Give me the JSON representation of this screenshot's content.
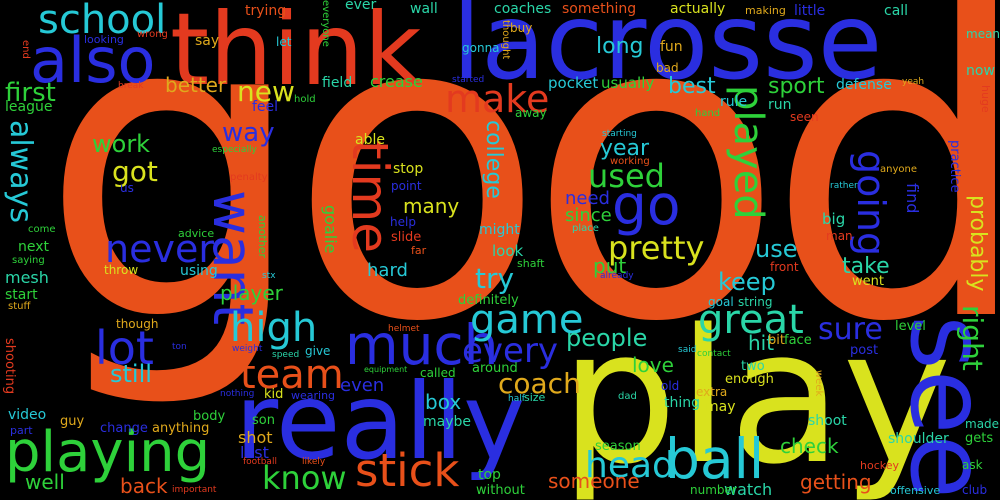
{
  "words": {
    "good": "good",
    "play": "play",
    "lacrosse": "lacrosse",
    "think": "think",
    "really": "really",
    "see": "see",
    "also": "also",
    "school": "school",
    "much": "much",
    "go": "go",
    "want": "want",
    "time": "time",
    "ball": "ball",
    "playing": "playing",
    "stick": "stick",
    "game": "game",
    "great": "great",
    "lot": "lot",
    "high": "high",
    "team": "team",
    "never": "never",
    "played": "played",
    "going": "going",
    "make": "make",
    "head": "head",
    "every": "every",
    "pretty": "pretty",
    "used": "used",
    "know": "know",
    "sure": "sure",
    "coach": "coach",
    "first": "first",
    "always": "always",
    "got": "got",
    "work": "work",
    "new": "new",
    "way": "way",
    "better": "better",
    "best": "best",
    "sport": "sport",
    "long": "long",
    "right": "right",
    "probably": "probably",
    "keep": "keep",
    "use": "use",
    "take": "take",
    "try": "try",
    "people": "people",
    "year": "year",
    "need": "need",
    "since": "since",
    "many": "many",
    "college": "college",
    "still": "still",
    "player": "player",
    "well": "well",
    "back": "back",
    "someone": "someone",
    "check": "check",
    "getting": "getting",
    "hit": "hit",
    "love": "love",
    "put": "put",
    "box": "box",
    "hard": "hard",
    "goalie": "goalie",
    "even": "even",
    "last": "last",
    "shot": "shot",
    "watch": "watch",
    "club": "club",
    "mean": "mean",
    "now": "now",
    "crease": "crease",
    "pocket": "pocket",
    "usually": "usually",
    "defense": "defense",
    "field": "field",
    "league": "league",
    "rule": "rule",
    "run": "run",
    "seen": "seen",
    "hand": "hand",
    "away": "away",
    "coaches": "coaches",
    "something": "something",
    "actually": "actually",
    "making": "making",
    "little": "little",
    "call": "call",
    "ever": "ever",
    "wall": "wall",
    "buy": "buy",
    "trying": "trying",
    "everyone": "everyone",
    "thought": "thought",
    "fun": "fun",
    "bad": "bad",
    "say": "say",
    "let": "let",
    "wrong": "wrong",
    "looking": "looking",
    "end": "end",
    "gonna": "gonna",
    "started": "started",
    "hold": "hold",
    "break": "break",
    "feel": "feel",
    "yeah": "yeah",
    "practice": "practice",
    "huge": "huge",
    "find": "find",
    "anyone": "anyone",
    "rather": "rather",
    "starting": "starting",
    "working": "working",
    "especially": "especially",
    "able": "able",
    "stop": "stop",
    "point": "point",
    "penalty": "penalty",
    "us": "us",
    "another": "another",
    "advice": "advice",
    "come": "come",
    "next": "next",
    "saying": "saying",
    "mesh": "mesh",
    "start": "start",
    "stuff": "stuff",
    "throw": "throw",
    "using": "using",
    "stx": "stx",
    "help": "help",
    "slide": "slide",
    "far": "far",
    "might": "might",
    "look": "look",
    "shaft": "shaft",
    "definitely": "definitely",
    "already": "already",
    "place": "place",
    "front": "front",
    "went": "went",
    "big": "big",
    "man": "man",
    "goal": "goal",
    "string": "string",
    "level": "level",
    "post": "post",
    "face": "face",
    "bit": "bit",
    "contact": "contact",
    "said": "said",
    "two": "two",
    "enough": "enough",
    "old": "old",
    "extra": "extra",
    "thing": "thing",
    "may": "may",
    "week": "week",
    "shoot": "shoot",
    "made": "made",
    "gets": "gets",
    "shoulder": "shoulder",
    "ask": "ask",
    "hockey": "hockey",
    "offensive": "offensive",
    "without": "without",
    "number": "number",
    "top": "top",
    "season": "season",
    "dad": "dad",
    "maybe": "maybe",
    "half": "half",
    "size": "size",
    "called": "called",
    "around": "around",
    "equipment": "equipment",
    "give": "give",
    "speed": "speed",
    "helmet": "helmet",
    "wearing": "wearing",
    "kid": "kid",
    "nothing": "nothing",
    "weight": "weight",
    "ton": "ton",
    "though": "though",
    "body": "body",
    "son": "son",
    "football": "football",
    "likely": "likely",
    "important": "important",
    "anything": "anything",
    "change": "change",
    "guy": "guy",
    "part": "part",
    "video": "video",
    "shooting": "shooting"
  },
  "palette": {
    "orange": "#e8501a",
    "yellow": "#d9e21e",
    "blue": "#2a2ee0",
    "green": "#2ed13a",
    "cyan": "#26c9d6",
    "teal": "#2ad6a8",
    "red": "#e33a1f",
    "mustard": "#e0a91c"
  }
}
